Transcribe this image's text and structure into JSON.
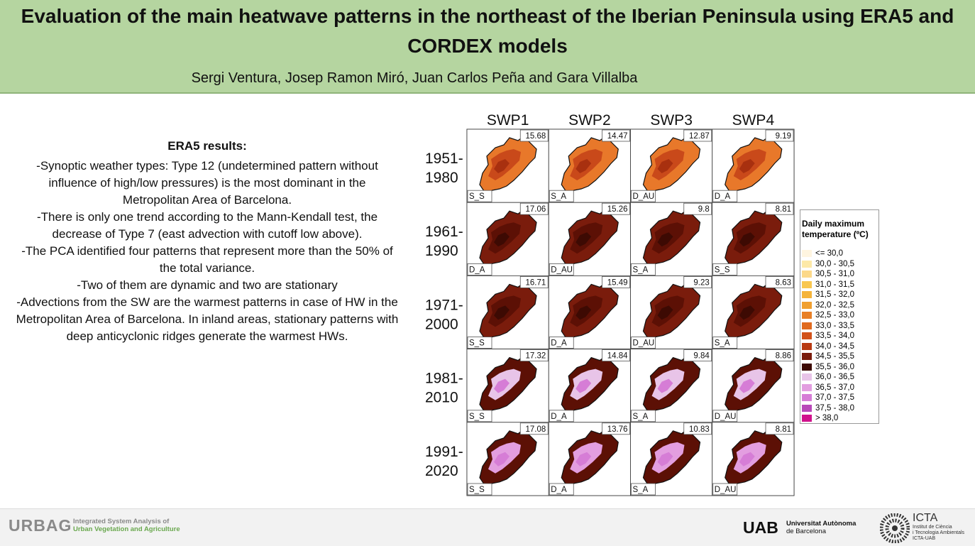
{
  "header": {
    "title": "Evaluation of the main heatwave patterns in the northeast of the Iberian Peninsula using ERA5 and CORDEX models",
    "authors": "Sergi Ventura, Josep Ramon Miró, Juan Carlos Peña and Gara Villalba"
  },
  "text": {
    "heading": "ERA5 results:",
    "paragraphs": [
      "-Synoptic weather types: Type 12 (undetermined pattern without influence of high/low pressures) is the most dominant in the Metropolitan Area of Barcelona.",
      "-There is only one trend according to the Mann-Kendall test, the decrease of Type 7 (east advection with cutoff low above).",
      "-The PCA identified four patterns that represent more than the 50% of the total variance.",
      "-Two of them are dynamic and two are stationary",
      "-Advections from the SW are the warmest patterns in case of HW in the Metropolitan Area of Barcelona. In inland areas, stationary patterns with deep anticyclonic ridges generate the warmest HWs."
    ]
  },
  "figure": {
    "columns": [
      "SWP1",
      "SWP2",
      "SWP3",
      "SWP4"
    ],
    "rows": [
      {
        "period": [
          "1951-",
          "1980"
        ],
        "cells": [
          {
            "value": 15.68,
            "label": "S_S"
          },
          {
            "value": 14.47,
            "label": "S_A"
          },
          {
            "value": 12.87,
            "label": "D_AU"
          },
          {
            "value": 9.19,
            "label": "D_A"
          }
        ]
      },
      {
        "period": [
          "1961-",
          "1990"
        ],
        "cells": [
          {
            "value": 17.06,
            "label": "D_A"
          },
          {
            "value": 15.26,
            "label": "D_AU"
          },
          {
            "value": 9.8,
            "label": "S_A"
          },
          {
            "value": 8.81,
            "label": "S_S"
          }
        ]
      },
      {
        "period": [
          "1971-",
          "2000"
        ],
        "cells": [
          {
            "value": 16.71,
            "label": "S_S"
          },
          {
            "value": 15.49,
            "label": "D_A"
          },
          {
            "value": 9.23,
            "label": "D_AU"
          },
          {
            "value": 8.63,
            "label": "S_A"
          }
        ]
      },
      {
        "period": [
          "1981-",
          "2010"
        ],
        "cells": [
          {
            "value": 17.32,
            "label": "S_S"
          },
          {
            "value": 14.84,
            "label": "D_A"
          },
          {
            "value": 9.84,
            "label": "S_A"
          },
          {
            "value": 8.86,
            "label": "D_AU"
          }
        ]
      },
      {
        "period": [
          "1991-",
          "2020"
        ],
        "cells": [
          {
            "value": 17.08,
            "label": "S_S"
          },
          {
            "value": 13.76,
            "label": "D_A"
          },
          {
            "value": 10.83,
            "label": "S_A"
          },
          {
            "value": 8.81,
            "label": "D_AU"
          }
        ]
      }
    ]
  },
  "legend": {
    "title": "Daily maximum temperature (ºC)",
    "items": [
      {
        "label": "<= 30,0",
        "color": "#fff5e0"
      },
      {
        "label": "30,0 - 30,5",
        "color": "#fde9a8"
      },
      {
        "label": "30,5 - 31,0",
        "color": "#fcd98a"
      },
      {
        "label": "31,0 - 31,5",
        "color": "#f9c74f"
      },
      {
        "label": "31,5 - 32,0",
        "color": "#f5b43a"
      },
      {
        "label": "32,0 - 32,5",
        "color": "#f0a030"
      },
      {
        "label": "32,5 - 33,0",
        "color": "#e88027"
      },
      {
        "label": "33,0 - 33,5",
        "color": "#e06a1f"
      },
      {
        "label": "33,5 - 34,0",
        "color": "#d2521a"
      },
      {
        "label": "34,0 - 34,5",
        "color": "#b83a12"
      },
      {
        "label": "34,5 - 35,5",
        "color": "#7a1c0c"
      },
      {
        "label": "35,5 - 36,0",
        "color": "#3d0a03"
      },
      {
        "label": "36,0 - 36,5",
        "color": "#e8c4e8"
      },
      {
        "label": "36,5 - 37,0",
        "color": "#e39ee0"
      },
      {
        "label": "37,0 - 37,5",
        "color": "#d67dd6"
      },
      {
        "label": "37,5 - 38,0",
        "color": "#b848b8"
      },
      {
        "label": "> 38,0",
        "color": "#d0128c"
      }
    ]
  },
  "footer": {
    "urbag": {
      "name": "URBAG",
      "line1": "Integrated System Analysis of",
      "line2": "Urban Vegetation and Agriculture"
    },
    "uab": {
      "name": "UAB",
      "line1": "Universitat Autònoma",
      "line2": "de Barcelona"
    },
    "icta": {
      "name": "ICTA",
      "line1": "Institut de Ciència",
      "line2": "i Tecnologia Ambientals",
      "line3": "ICTA-UAB"
    }
  }
}
